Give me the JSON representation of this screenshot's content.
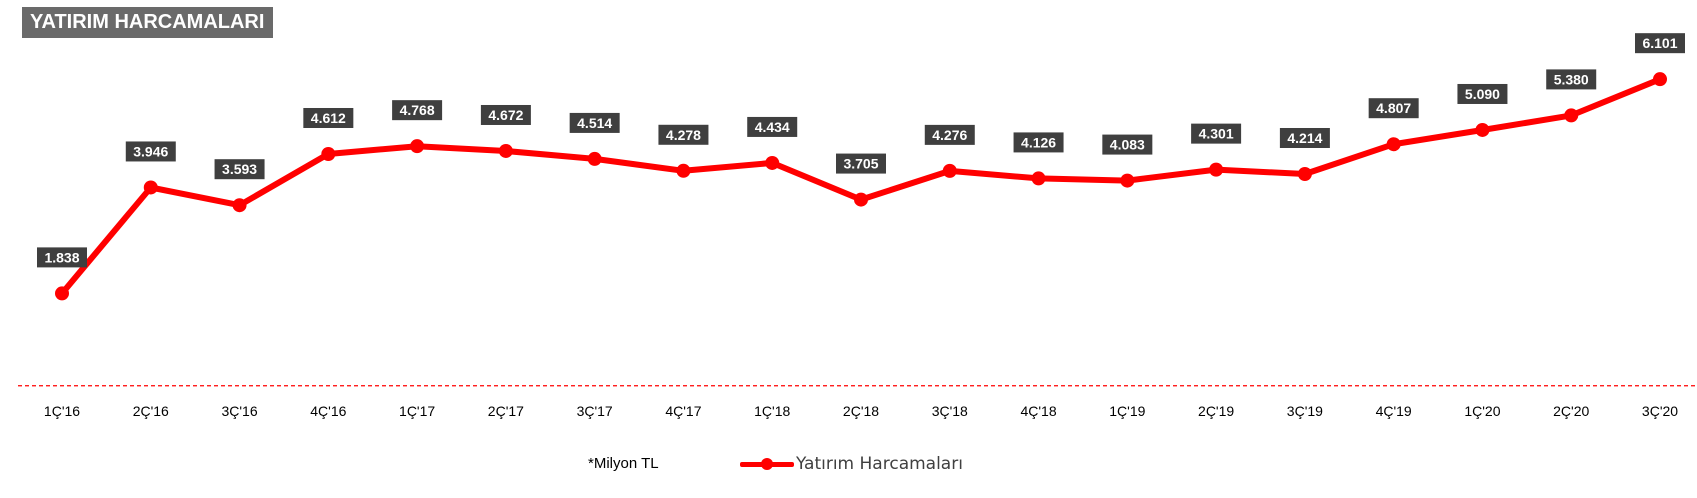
{
  "title": "YATIRIM HARCAMALARI",
  "note": "*Milyon TL",
  "colors": {
    "line": "#ff0000",
    "label_bg": "#3f3f3f",
    "title_bg": "#6a6a6a",
    "baseline": "#ff0000"
  },
  "chart_data": {
    "type": "line",
    "title": "YATIRIM HARCAMALARI",
    "categories": [
      "1Ç'16",
      "2Ç'16",
      "3Ç'16",
      "4Ç'16",
      "1Ç'17",
      "2Ç'17",
      "3Ç'17",
      "4Ç'17",
      "1Ç'18",
      "2Ç'18",
      "3Ç'18",
      "4Ç'18",
      "1Ç'19",
      "2Ç'19",
      "3Ç'19",
      "4Ç'19",
      "1Ç'20",
      "2Ç'20",
      "3Ç'20"
    ],
    "series": [
      {
        "name": "Yatırım Harcamaları",
        "values": [
          1838,
          3946,
          3593,
          4612,
          4768,
          4672,
          4514,
          4278,
          4434,
          3705,
          4276,
          4126,
          4083,
          4301,
          4214,
          4807,
          5090,
          5380,
          6101
        ],
        "labels": [
          "1.838",
          "3.946",
          "3.593",
          "4.612",
          "4.768",
          "4.672",
          "4.514",
          "4.278",
          "4.434",
          "3.705",
          "4.276",
          "4.126",
          "4.083",
          "4.301",
          "4.214",
          "4.807",
          "5.090",
          "5.380",
          "6.101"
        ]
      }
    ],
    "ylim": [
      -1000,
      7000
    ],
    "grid": false,
    "baseline": "dashed",
    "legend_position": "bottom-center",
    "unit": "*Milyon TL"
  },
  "legend": {
    "label": "Yatırım Harcamaları"
  }
}
